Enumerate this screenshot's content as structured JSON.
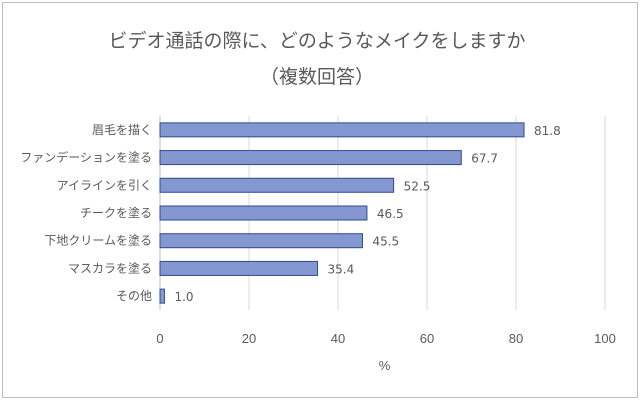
{
  "chart_data": {
    "type": "bar",
    "orientation": "horizontal",
    "title": "ビデオ通話の際に、どのようなメイクをしますか",
    "subtitle": "（複数回答）",
    "categories": [
      "眉毛を描く",
      "ファンデーションを塗る",
      "アイラインを引く",
      "チークを塗る",
      "下地クリームを塗る",
      "マスカラを塗る",
      "その他"
    ],
    "values": [
      81.8,
      67.7,
      52.5,
      46.5,
      45.5,
      35.4,
      1.0
    ],
    "value_labels": [
      "81.8",
      "67.7",
      "52.5",
      "46.5",
      "45.5",
      "35.4",
      "1.0"
    ],
    "xlabel": "%",
    "xlim": [
      0,
      100
    ],
    "xticks": [
      "0",
      "20",
      "40",
      "60",
      "80",
      "100"
    ],
    "grid": true,
    "bar_color": "#8497d1",
    "bar_edge_color": "#2f4b8f"
  }
}
